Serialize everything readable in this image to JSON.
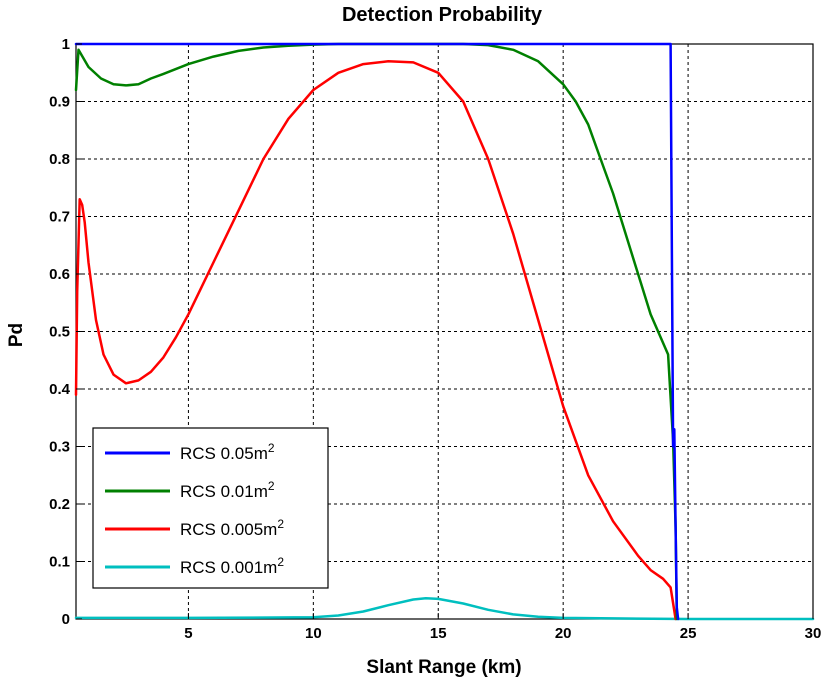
{
  "chart_data": {
    "type": "line",
    "title": "Detection Probability",
    "xlabel": "Slant Range (km)",
    "ylabel": "Pd",
    "xlim": [
      0.5,
      30
    ],
    "ylim": [
      0,
      1
    ],
    "xticks": [
      5,
      10,
      15,
      20,
      25,
      30
    ],
    "yticks": [
      0,
      0.1,
      0.2,
      0.3,
      0.4,
      0.5,
      0.6,
      0.7,
      0.8,
      0.9,
      1
    ],
    "xtick_labels": [
      "5",
      "10",
      "15",
      "20",
      "25",
      "30"
    ],
    "ytick_labels": [
      "0",
      "0.1",
      "0.2",
      "0.3",
      "0.4",
      "0.5",
      "0.6",
      "0.7",
      "0.8",
      "0.9",
      "1"
    ],
    "grid": true,
    "legend_position": "bottom-left",
    "series": [
      {
        "name": "RCS 0.05m2",
        "legend_base": "RCS 0.05m",
        "legend_sup": "2",
        "color": "#0000ff",
        "x": [
          0.5,
          24.3,
          24.35,
          24.4,
          24.45,
          24.5,
          24.55,
          24.6
        ],
        "y": [
          1.0,
          1.0,
          0.66,
          0.3,
          0.33,
          0.16,
          0.02,
          0.0
        ]
      },
      {
        "name": "RCS 0.01m2",
        "legend_base": "RCS 0.01m",
        "legend_sup": "2",
        "color": "#008000",
        "x": [
          0.5,
          0.6,
          0.8,
          1.0,
          1.5,
          2.0,
          2.5,
          3.0,
          3.5,
          4.0,
          5.0,
          6.0,
          7.0,
          8.0,
          9.0,
          10.0,
          11.0,
          12.0,
          13.0,
          14.0,
          15.0,
          16.0,
          17.0,
          18.0,
          19.0,
          20.0,
          20.5,
          21.0,
          21.5,
          22.0,
          22.5,
          23.0,
          23.5,
          24.0,
          24.2,
          24.4,
          24.5,
          24.55
        ],
        "y": [
          0.92,
          0.99,
          0.975,
          0.96,
          0.94,
          0.93,
          0.928,
          0.93,
          0.94,
          0.948,
          0.965,
          0.978,
          0.988,
          0.994,
          0.997,
          0.999,
          1.0,
          1.0,
          1.0,
          1.0,
          1.0,
          1.0,
          0.998,
          0.99,
          0.97,
          0.93,
          0.9,
          0.86,
          0.8,
          0.74,
          0.67,
          0.6,
          0.53,
          0.48,
          0.46,
          0.31,
          0.16,
          0.0
        ]
      },
      {
        "name": "RCS 0.005m2",
        "legend_base": "RCS 0.005m",
        "legend_sup": "2",
        "color": "#ff0000",
        "x": [
          0.5,
          0.55,
          0.65,
          0.75,
          0.85,
          1.0,
          1.3,
          1.6,
          2.0,
          2.5,
          3.0,
          3.5,
          4.0,
          4.5,
          5.0,
          5.5,
          6.0,
          7.0,
          8.0,
          9.0,
          10.0,
          11.0,
          12.0,
          13.0,
          14.0,
          15.0,
          16.0,
          17.0,
          18.0,
          19.0,
          20.0,
          21.0,
          22.0,
          23.0,
          23.5,
          24.0,
          24.3,
          24.5
        ],
        "y": [
          0.39,
          0.57,
          0.73,
          0.72,
          0.69,
          0.62,
          0.52,
          0.46,
          0.425,
          0.41,
          0.415,
          0.43,
          0.455,
          0.49,
          0.53,
          0.575,
          0.62,
          0.71,
          0.8,
          0.87,
          0.92,
          0.95,
          0.965,
          0.97,
          0.968,
          0.95,
          0.9,
          0.8,
          0.67,
          0.52,
          0.37,
          0.25,
          0.17,
          0.11,
          0.085,
          0.07,
          0.055,
          0.0
        ]
      },
      {
        "name": "RCS 0.001m2",
        "legend_base": "RCS 0.001m",
        "legend_sup": "2",
        "color": "#00bfbf",
        "x": [
          0.5,
          5.0,
          10.0,
          11.0,
          12.0,
          13.0,
          14.0,
          14.5,
          15.0,
          16.0,
          17.0,
          18.0,
          19.0,
          20.0,
          22.0,
          25.0,
          30.0
        ],
        "y": [
          0.002,
          0.002,
          0.003,
          0.006,
          0.013,
          0.024,
          0.034,
          0.036,
          0.035,
          0.027,
          0.016,
          0.008,
          0.004,
          0.002,
          0.001,
          0.0,
          0.0
        ]
      }
    ]
  }
}
